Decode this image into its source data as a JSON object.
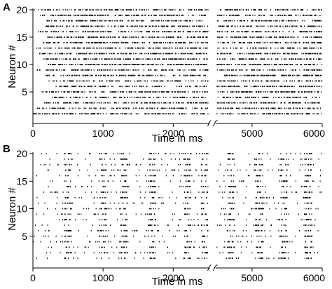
{
  "chart_data": [
    {
      "type": "scatter",
      "panel_label": "A",
      "title": "",
      "xlabel": "Time in ms",
      "ylabel": "Neuron #",
      "xlim": [
        0,
        6000
      ],
      "ylim": [
        0,
        20
      ],
      "axis_break": {
        "from": 2500,
        "to": 4500
      },
      "x_ticks": [
        0,
        1000,
        2000,
        5000,
        6000
      ],
      "y_ticks": [
        5,
        10,
        15,
        20
      ],
      "grid": false,
      "series": [
        {
          "neurons": [
            1,
            2,
            3,
            4,
            5,
            6,
            7,
            8,
            9,
            10,
            11,
            12,
            13,
            14,
            15,
            16,
            17,
            18,
            19,
            20
          ],
          "pattern": "dense-from-start",
          "onset_ms": [
            0,
            60,
            160,
            230,
            120,
            320,
            200,
            150,
            60,
            210,
            140,
            90,
            40,
            120,
            180,
            80,
            160,
            200,
            110,
            10
          ],
          "firing_rate_hz": [
            58,
            52,
            66,
            50,
            62,
            57,
            48,
            63,
            55,
            60,
            51,
            64,
            56,
            49,
            61,
            54,
            59,
            53,
            65,
            50
          ]
        }
      ]
    },
    {
      "type": "scatter",
      "panel_label": "B",
      "title": "",
      "xlabel": "Time in ms",
      "ylabel": "Neuron #",
      "xlim": [
        0,
        6000
      ],
      "ylim": [
        0,
        20
      ],
      "axis_break": {
        "from": 2500,
        "to": 4500
      },
      "x_ticks": [
        0,
        1000,
        2000,
        5000,
        6000
      ],
      "y_ticks": [
        5,
        10,
        15,
        20
      ],
      "grid": false,
      "series": [
        {
          "neurons": [
            1,
            2,
            3,
            4,
            5,
            6,
            7,
            8,
            9,
            10,
            11,
            12,
            13,
            14,
            15,
            16,
            17,
            18,
            19,
            20
          ],
          "pattern": "bursting",
          "burst_centers_ms": [
            500,
            1000,
            1300,
            1700,
            2200,
            2450,
            4700,
            5100,
            5450,
            5800
          ],
          "burst_width_ms": 110,
          "background_rate_hz": 9,
          "burst_rate_hz": 55
        }
      ]
    }
  ]
}
